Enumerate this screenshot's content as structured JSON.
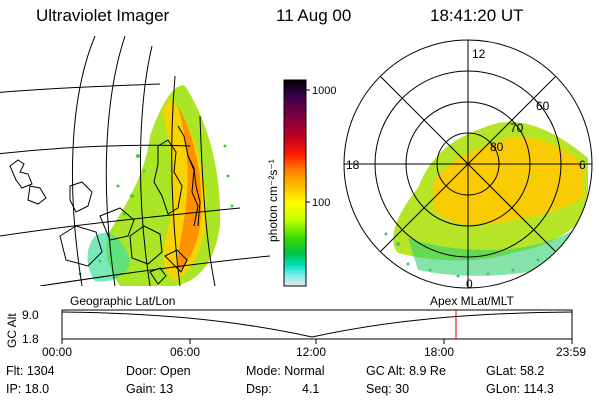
{
  "header": {
    "instrument": "Ultraviolet Imager",
    "date": "11 Aug 00",
    "time": "18:41:20 UT"
  },
  "colorbar": {
    "unit_label": "photon cm⁻²s⁻¹",
    "ticks": [
      "1000",
      "100"
    ],
    "colors": [
      "#000000",
      "#3a0050",
      "#800040",
      "#c00020",
      "#ff1a00",
      "#ff7f00",
      "#ffbf00",
      "#ffff00",
      "#c0ff00",
      "#40e000",
      "#00c040",
      "#00e0c0",
      "#80f0f0",
      "#e0e0e0"
    ]
  },
  "polar_plot": {
    "labels": {
      "top": "12",
      "left": "18",
      "right": "6",
      "bottom": "0",
      "ring_60": "60",
      "ring_70": "70",
      "ring_80": "80"
    }
  },
  "timeline": {
    "left_title": "Geographic Lat/Lon",
    "right_title": "Apex MLat/MLT",
    "y_axis_label": "GC Alt",
    "y_top": "9.0",
    "y_bottom": "1.8",
    "ticks": [
      "00:00",
      "06:00",
      "12:00",
      "18:00",
      "23:59"
    ],
    "marker_color": "#cc0000"
  },
  "info": {
    "flt": "Flt: 1304",
    "ip": "IP: 18.0",
    "door": "Door: Open",
    "gain": "Gain: 13",
    "mode": "Mode: Normal",
    "dsp_label": "Dsp:",
    "dsp_value": "4.1",
    "gcalt": "GC Alt: 8.9 Re",
    "seq": "Seq: 30",
    "glat": "GLat: 58.2",
    "glon": "GLon: 114.3"
  }
}
